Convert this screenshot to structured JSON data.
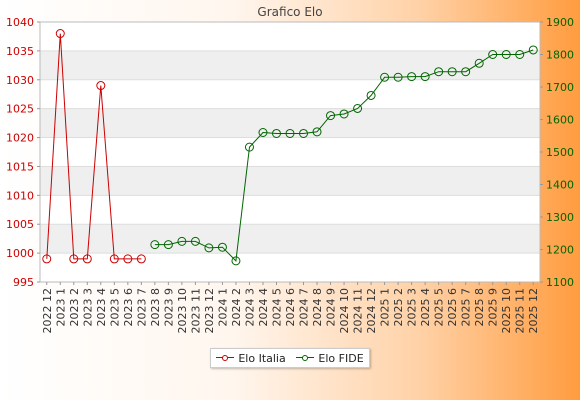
{
  "chart_data": {
    "type": "line",
    "title": "Grafico Elo",
    "categories": [
      "2022 12",
      "2023 1",
      "2023 2",
      "2023 3",
      "2023 4",
      "2023 5",
      "2023 6",
      "2023 7",
      "2023 8",
      "2023 9",
      "2023 10",
      "2023 11",
      "2023 12",
      "2024 1",
      "2024 2",
      "2024 3",
      "2024 4",
      "2024 5",
      "2024 6",
      "2024 7",
      "2024 8",
      "2024 9",
      "2024 10",
      "2024 11",
      "2024 12",
      "2025 1",
      "2025 2",
      "2025 3",
      "2025 4",
      "2025 5",
      "2025 6",
      "2025 7",
      "2025 8",
      "2025 9",
      "2025 10",
      "2025 11",
      "2025 12"
    ],
    "y_left": {
      "range": [
        995,
        1040
      ],
      "ticks": [
        995,
        1000,
        1005,
        1010,
        1015,
        1020,
        1025,
        1030,
        1035,
        1040
      ],
      "color": "#cc0000"
    },
    "y_right": {
      "range": [
        1100,
        1900
      ],
      "ticks": [
        1100,
        1200,
        1300,
        1400,
        1500,
        1600,
        1700,
        1800,
        1900
      ],
      "color": "#006600"
    },
    "grid": "horizontal bands",
    "legend_position": "bottom",
    "series": [
      {
        "name": "Elo Italia",
        "axis": "left",
        "color": "#cc0000",
        "values": [
          999,
          1038,
          999,
          999,
          1029,
          999,
          999,
          999,
          null,
          null,
          null,
          null,
          null,
          null,
          null,
          null,
          null,
          null,
          null,
          null,
          null,
          null,
          null,
          null,
          null,
          null,
          null,
          null,
          null,
          null,
          null,
          null,
          null,
          null,
          null,
          null,
          null
        ]
      },
      {
        "name": "Elo FIDE",
        "axis": "right",
        "color": "#006600",
        "values": [
          null,
          null,
          null,
          null,
          null,
          null,
          null,
          null,
          1215,
          1215,
          1225,
          1225,
          1205,
          1207,
          1165,
          1515,
          1560,
          1557,
          1557,
          1557,
          1562,
          1612,
          1617,
          1634,
          1674,
          1730,
          1730,
          1732,
          1732,
          1747,
          1747,
          1747,
          1773,
          1800,
          1800,
          1800,
          1814
        ]
      }
    ]
  }
}
